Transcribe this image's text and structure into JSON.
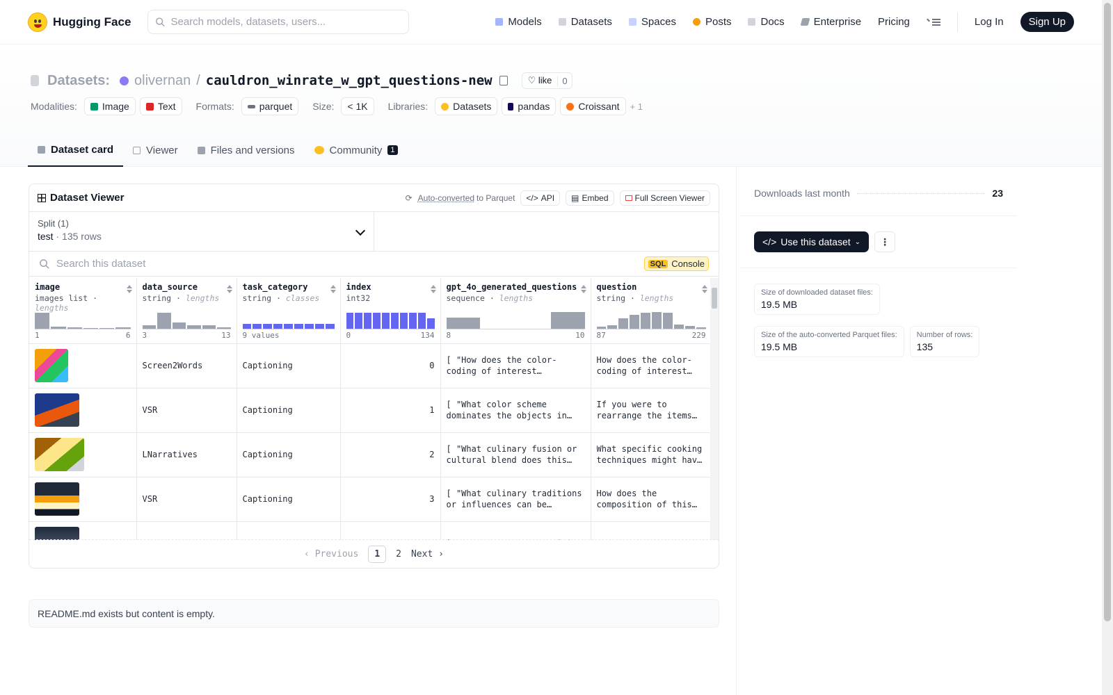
{
  "nav": {
    "logo_text": "Hugging Face",
    "search_placeholder": "Search models, datasets, users...",
    "items": [
      "Models",
      "Datasets",
      "Spaces",
      "Posts",
      "Docs",
      "Enterprise",
      "Pricing"
    ],
    "login": "Log In",
    "signup": "Sign Up"
  },
  "header": {
    "section": "Datasets:",
    "owner": "olivernan",
    "slash": "/",
    "repo": "cauldron_winrate_w_gpt_questions-new",
    "like_label": "like",
    "like_count": "0",
    "modalities_label": "Modalities:",
    "modalities": [
      "Image",
      "Text"
    ],
    "formats_label": "Formats:",
    "format": "parquet",
    "size_label": "Size:",
    "size": "< 1K",
    "libraries_label": "Libraries:",
    "libraries": [
      "Datasets",
      "pandas",
      "Croissant"
    ],
    "more": "+ 1"
  },
  "tabs": [
    {
      "label": "Dataset card"
    },
    {
      "label": "Viewer"
    },
    {
      "label": "Files and versions"
    },
    {
      "label": "Community",
      "badge": "1"
    }
  ],
  "viewer": {
    "title": "Dataset Viewer",
    "auto_converted": "Auto-converted",
    "to_parquet": "to Parquet",
    "api": "API",
    "embed": "Embed",
    "full_screen": "Full Screen Viewer",
    "split_label": "Split (1)",
    "split_name": "test",
    "split_dot": "·",
    "split_rows": "135 rows",
    "search_placeholder": "Search this dataset",
    "sql": "SQL",
    "console": "Console",
    "columns": [
      {
        "name": "image",
        "type": "images list",
        "stat": "lengths",
        "min": "1",
        "max": "6",
        "hist": [
          0.85,
          0.12,
          0.06,
          0.03,
          0.02,
          0.06
        ]
      },
      {
        "name": "data_source",
        "type": "string",
        "stat": "lengths",
        "min": "3",
        "max": "13",
        "hist": [
          0.2,
          0.85,
          0.35,
          0.2,
          0.18,
          0.06
        ]
      },
      {
        "name": "task_category",
        "type": "string",
        "stat": "classes",
        "min": "9 values",
        "max": "",
        "hist": [
          0.25,
          0.25,
          0.25,
          0.25,
          0.25,
          0.25,
          0.25,
          0.25,
          0.25
        ]
      },
      {
        "name": "index",
        "type": "int32",
        "stat": "",
        "min": "0",
        "max": "134",
        "hist": [
          0.85,
          0.85,
          0.85,
          0.85,
          0.85,
          0.85,
          0.85,
          0.85,
          0.85,
          0.55
        ]
      },
      {
        "name": "gpt_4o_generated_questions",
        "type": "sequence",
        "stat": "lengths",
        "min": "8",
        "max": "10",
        "hist": [
          0.6,
          0,
          0,
          0.9
        ]
      },
      {
        "name": "question",
        "type": "string",
        "stat": "lengths",
        "min": "87",
        "max": "229",
        "hist": [
          0.1,
          0.18,
          0.55,
          0.75,
          0.85,
          0.9,
          0.85,
          0.22,
          0.15,
          0.06
        ]
      }
    ],
    "rows": [
      {
        "data_source": "Screen2Words",
        "task_category": "Captioning",
        "index": "0",
        "gpt": "[ \"How does the color-coding of interest categories in this app's interface facilitate user navigation?\"",
        "question": "How does the color-coding of interest categories improve navigation?"
      },
      {
        "data_source": "VSR",
        "task_category": "Captioning",
        "index": "1",
        "gpt": "[ \"What color scheme dominates the objects in the image and what mood does it convey?\"",
        "question": "If you were to rearrange the items in this scene, what would you change?"
      },
      {
        "data_source": "LNarratives",
        "task_category": "Captioning",
        "index": "2",
        "gpt": "[ \"What culinary fusion or cultural blend does this dish represent?\"",
        "question": "What specific cooking techniques might have been used for this dish?"
      },
      {
        "data_source": "VSR",
        "task_category": "Captioning",
        "index": "3",
        "gpt": "[ \"What culinary traditions or influences can be inferred from this meal?\"",
        "question": "How does the composition of this meal reflect its origin?"
      },
      {
        "data_source": "",
        "task_category": "",
        "index": "",
        "gpt": "[ \"How does the composition",
        "question": "What narrative"
      }
    ],
    "pager": {
      "prev": "Previous",
      "pages": [
        "1",
        "2"
      ],
      "next": "Next"
    }
  },
  "readme": "README.md exists but content is empty.",
  "side": {
    "downloads_label": "Downloads last month",
    "downloads": "23",
    "use_dataset": "Use this dataset",
    "kebab": "⋮",
    "size_dl_label": "Size of downloaded dataset files:",
    "size_dl": "19.5 MB",
    "size_pq_label": "Size of the auto-converted Parquet files:",
    "size_pq": "19.5 MB",
    "rows_label": "Number of rows:",
    "rows": "135"
  },
  "colors": {
    "accent": "#6366f1",
    "dark": "#111827"
  }
}
